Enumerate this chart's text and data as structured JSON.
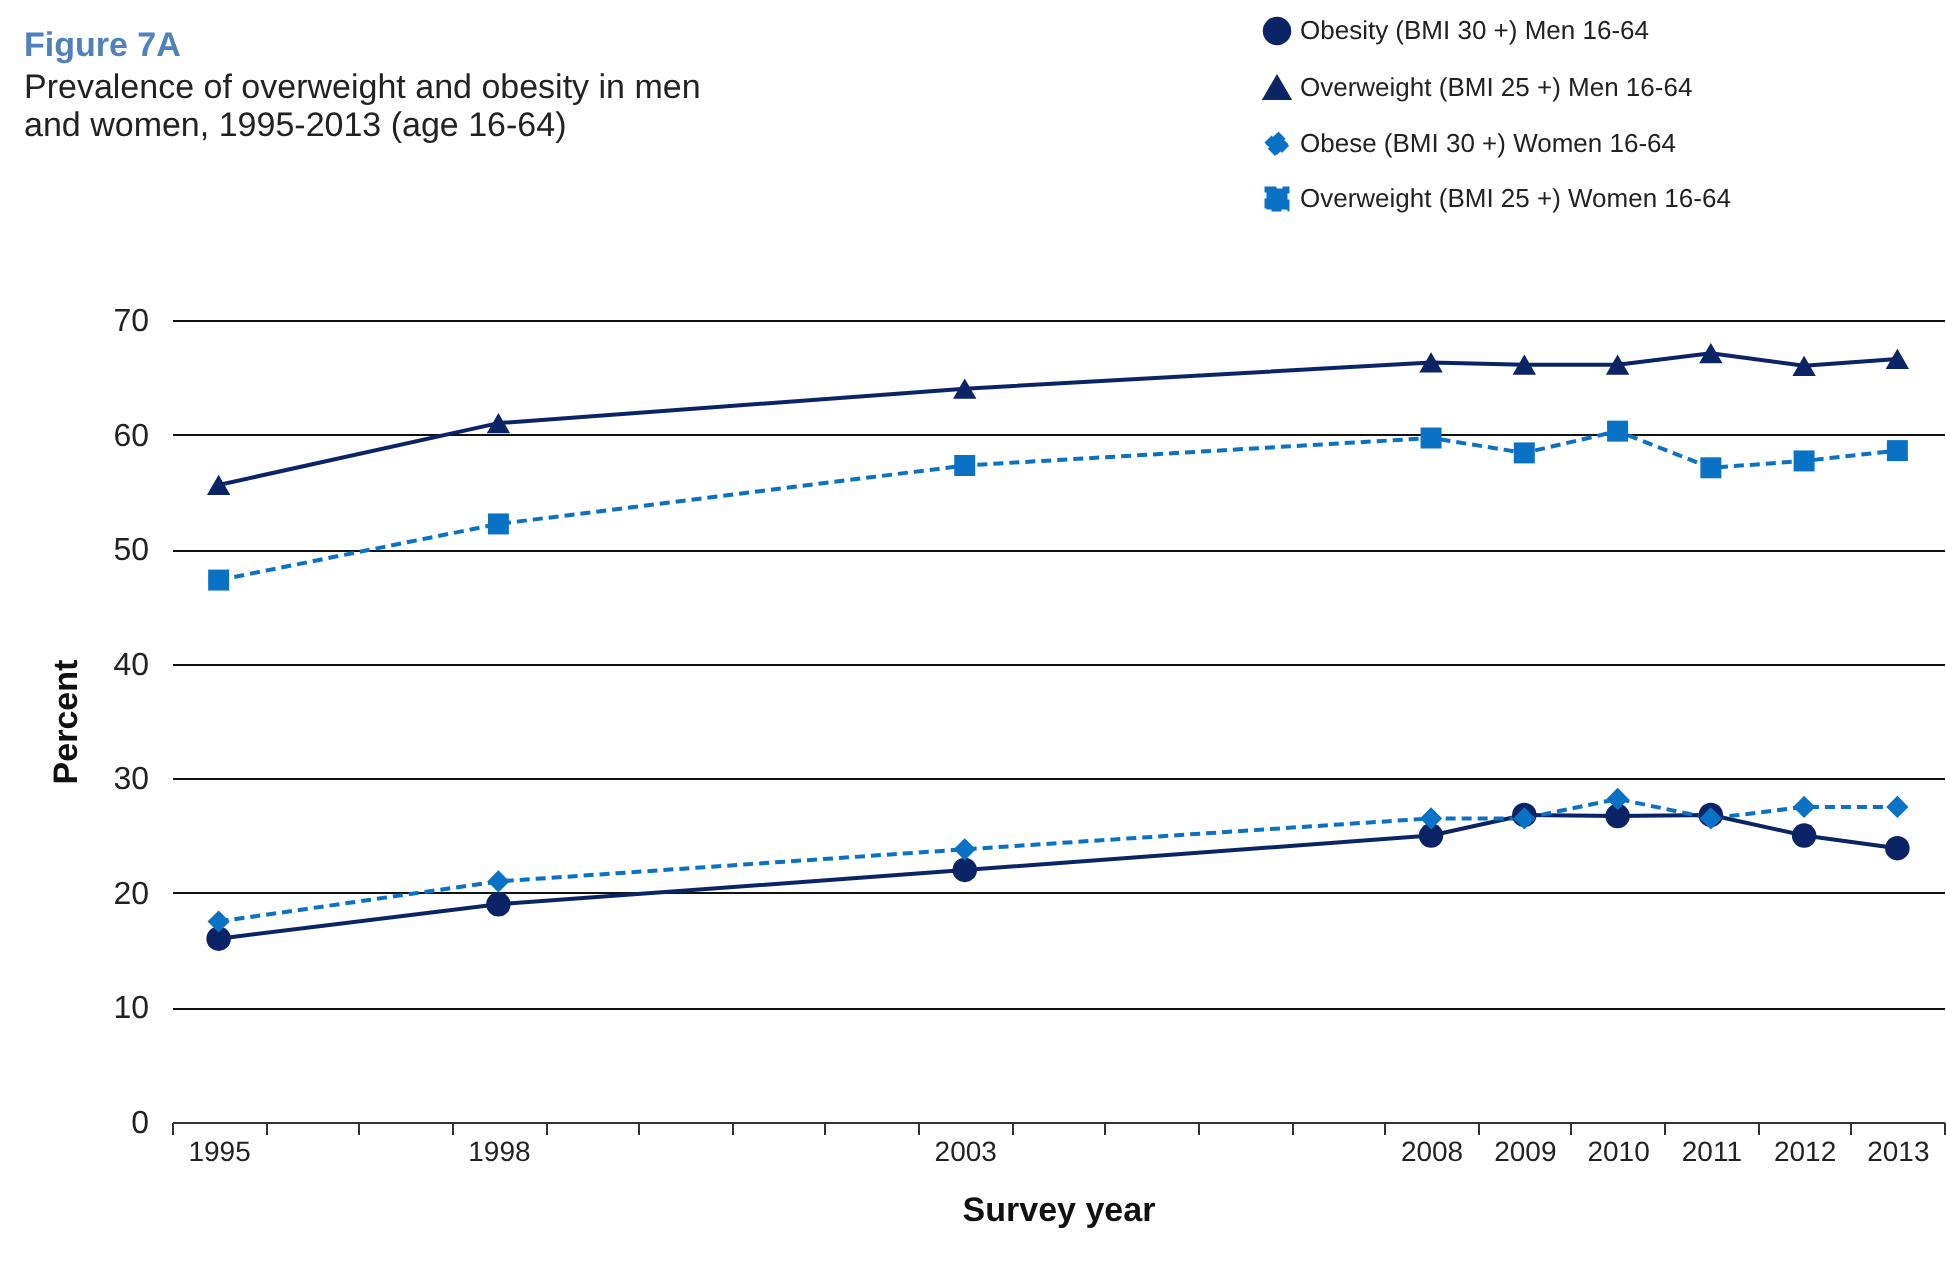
{
  "chart_data": {
    "type": "line",
    "title": "Figure 7A",
    "subtitle": "Prevalence of overweight and obesity in men and women, 1995-2013 (age 16-64)",
    "xlabel": "Survey year",
    "ylabel": "Percent",
    "x": [
      1995,
      1998,
      2003,
      2008,
      2009,
      2010,
      2011,
      2012,
      2013
    ],
    "series": [
      {
        "name": "Obesity (BMI 30 +) Men 16-64",
        "color": "#0b2466",
        "marker": "circle",
        "line_style": "solid",
        "values": [
          16,
          19,
          22,
          25,
          26.8,
          26.7,
          26.8,
          25,
          23.9
        ]
      },
      {
        "name": "Overweight (BMI 25 +) Men 16-64",
        "color": "#0b2466",
        "marker": "triangle",
        "line_style": "solid",
        "values": [
          55.6,
          61,
          64,
          66.3,
          66.1,
          66.1,
          67.1,
          66,
          66.6
        ]
      },
      {
        "name": "Obese (BMI 30 +) Women 16-64",
        "color": "#0a72c4",
        "marker": "diamond",
        "line_style": "dashed",
        "values": [
          17.5,
          21,
          23.8,
          26.5,
          26.5,
          28.2,
          26.5,
          27.5,
          27.5
        ]
      },
      {
        "name": "Overweight (BMI 25 +) Women 16-64",
        "color": "#0a72c4",
        "marker": "square",
        "line_style": "dashed",
        "values": [
          47.3,
          52.2,
          57.3,
          59.7,
          58.4,
          60.3,
          57.1,
          57.7,
          58.6
        ]
      }
    ],
    "xlim": [
      1994.5,
      2013.5
    ],
    "xticks": [
      {
        "value": 1994.5,
        "label": null
      },
      1995,
      {
        "value": 1995.5,
        "label": null
      },
      {
        "value": 1996.5,
        "label": null
      },
      {
        "value": 1997.5,
        "label": null
      },
      1998,
      {
        "value": 1998.5,
        "label": null
      },
      {
        "value": 1999.5,
        "label": null
      },
      {
        "value": 2000.5,
        "label": null
      },
      {
        "value": 2001.5,
        "label": null
      },
      {
        "value": 2002.5,
        "label": null
      },
      2003,
      {
        "value": 2003.5,
        "label": null
      },
      {
        "value": 2004.5,
        "label": null
      },
      {
        "value": 2005.5,
        "label": null
      },
      {
        "value": 2006.5,
        "label": null
      },
      {
        "value": 2007.5,
        "label": null
      },
      2008,
      {
        "value": 2008.5,
        "label": null
      },
      2009,
      {
        "value": 2009.5,
        "label": null
      },
      2010,
      {
        "value": 2010.5,
        "label": null
      },
      2011,
      {
        "value": 2011.5,
        "label": null
      },
      2012,
      {
        "value": 2012.5,
        "label": null
      },
      2013,
      {
        "value": 2013.5,
        "label": null
      }
    ],
    "ylim": [
      0,
      70
    ],
    "yticks": [
      0,
      10,
      20,
      30,
      40,
      50,
      60,
      70
    ],
    "grid": "y",
    "legend": "top right"
  }
}
